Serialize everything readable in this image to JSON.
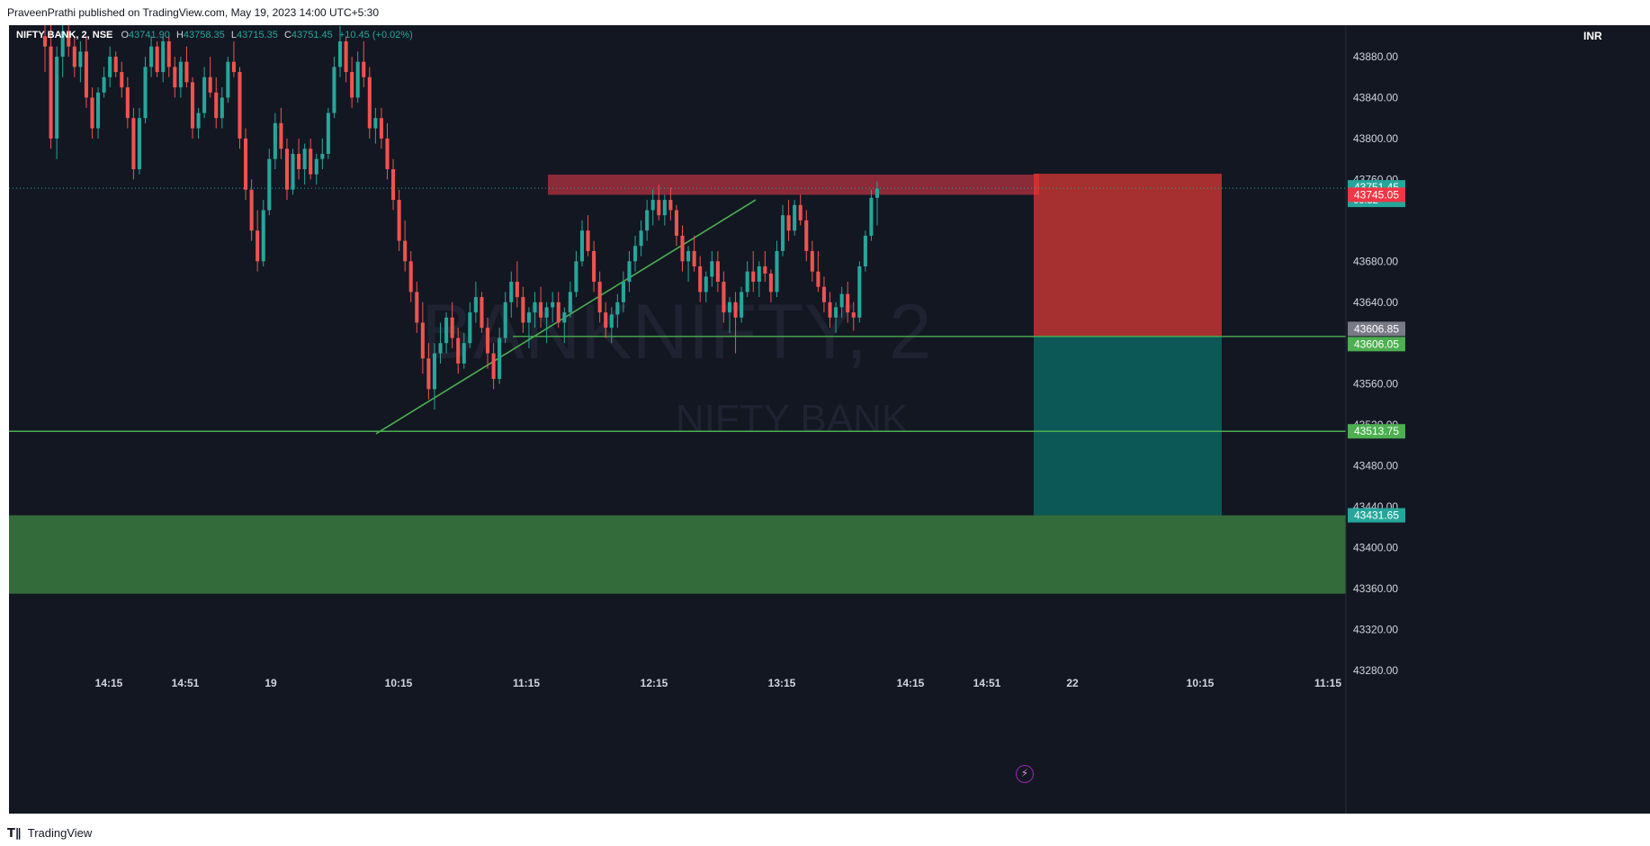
{
  "header": {
    "published_text": "PraveenPrathi published on TradingView.com, May 19, 2023 14:00 UTC+5:30"
  },
  "footer": {
    "brand": "TradingView"
  },
  "legend": {
    "symbol": "NIFTY BANK, 2, NSE",
    "open_label": "O",
    "open": "43741.90",
    "high_label": "H",
    "high": "43758.35",
    "low_label": "L",
    "low": "43715.35",
    "close_label": "C",
    "close": "43751.45",
    "change": "+10.45 (+0.02%)"
  },
  "currency": "INR",
  "watermark": {
    "symbol": "BANKNIFTY, 2",
    "name": "NIFTY BANK"
  },
  "icons": {
    "flash": "lightning-icon",
    "logo": "tradingview-logo-icon"
  },
  "colors": {
    "background": "#131722",
    "up": "#26a69a",
    "down": "#ef5350",
    "resistance_zone": "#8b2a38",
    "stop_zone": "#a5302f",
    "target_zone": "#0c5856",
    "demand_zone": "#336b3b",
    "trendline": "#4caf50"
  },
  "chart_data": {
    "type": "candlestick",
    "title": "",
    "ylim": [
      43280,
      43900
    ],
    "yticks": [
      43880,
      43840,
      43800,
      43760,
      43720,
      43680,
      43640,
      43600,
      43560,
      43520,
      43480,
      43440,
      43400,
      43360,
      43320,
      43280
    ],
    "ytick_labels": [
      "43880.00",
      "43840.00",
      "43800.00",
      "43760.00",
      "",
      "43680.00",
      "43640.00",
      "",
      "43560.00",
      "43520.00",
      "43480.00",
      "43440.00",
      "43400.00",
      "43360.00",
      "43320.00",
      "43280.00"
    ],
    "xtick_labels": [
      "14:15",
      "14:51",
      "19",
      "10:15",
      "11:15",
      "12:15",
      "13:15",
      "14:15",
      "14:51",
      "22",
      "10:15",
      "11:15"
    ],
    "price_labels": [
      {
        "value": 43751.45,
        "text": "43751.45",
        "sub": "00:32",
        "color": "#26a69a"
      },
      {
        "value": 43745.05,
        "text": "43745.05",
        "color": "#f23645"
      },
      {
        "value": 43606.85,
        "text": "43606.85",
        "color": "#787b86"
      },
      {
        "value": 43606.05,
        "text": "43606.05",
        "color": "#4caf50"
      },
      {
        "value": 43513.75,
        "text": "43513.75",
        "color": "#4caf50"
      },
      {
        "value": 43431.65,
        "text": "43431.65",
        "color": "#26a69a"
      }
    ],
    "zones": [
      {
        "name": "resistance",
        "from": 43745,
        "to": 43770
      },
      {
        "name": "short-stop",
        "from": 43606,
        "to": 43770
      },
      {
        "name": "short-target",
        "from": 43431.65,
        "to": 43606
      },
      {
        "name": "demand",
        "from": 43355,
        "to": 43431.65
      }
    ],
    "horizontal_lines": [
      43606.5,
      43513.75
    ],
    "trendline": {
      "from": 43514,
      "to": 43740
    },
    "candles": [
      [
        43900,
        43935,
        43865,
        43890
      ],
      [
        43890,
        43920,
        43790,
        43800
      ],
      [
        43800,
        43890,
        43780,
        43880
      ],
      [
        43880,
        43920,
        43860,
        43905
      ],
      [
        43905,
        43930,
        43880,
        43890
      ],
      [
        43890,
        43900,
        43860,
        43870
      ],
      [
        43870,
        43895,
        43855,
        43885
      ],
      [
        43885,
        43900,
        43830,
        43840
      ],
      [
        43840,
        43850,
        43800,
        43810
      ],
      [
        43810,
        43850,
        43800,
        43845
      ],
      [
        43845,
        43870,
        43840,
        43860
      ],
      [
        43860,
        43890,
        43850,
        43880
      ],
      [
        43880,
        43885,
        43860,
        43865
      ],
      [
        43865,
        43875,
        43840,
        43850
      ],
      [
        43850,
        43860,
        43810,
        43820
      ],
      [
        43820,
        43830,
        43760,
        43770
      ],
      [
        43770,
        43830,
        43765,
        43820
      ],
      [
        43820,
        43880,
        43815,
        43870
      ],
      [
        43870,
        43900,
        43860,
        43890
      ],
      [
        43890,
        43895,
        43860,
        43865
      ],
      [
        43865,
        43900,
        43855,
        43895
      ],
      [
        43895,
        43900,
        43860,
        43870
      ],
      [
        43870,
        43880,
        43840,
        43850
      ],
      [
        43850,
        43880,
        43840,
        43875
      ],
      [
        43875,
        43890,
        43850,
        43855
      ],
      [
        43855,
        43860,
        43800,
        43810
      ],
      [
        43810,
        43830,
        43800,
        43825
      ],
      [
        43825,
        43870,
        43820,
        43860
      ],
      [
        43860,
        43880,
        43840,
        43845
      ],
      [
        43845,
        43860,
        43810,
        43820
      ],
      [
        43820,
        43850,
        43810,
        43840
      ],
      [
        43840,
        43880,
        43835,
        43875
      ],
      [
        43875,
        43895,
        43860,
        43865
      ],
      [
        43865,
        43870,
        43790,
        43800
      ],
      [
        43800,
        43810,
        43740,
        43750
      ],
      [
        43750,
        43760,
        43700,
        43710
      ],
      [
        43710,
        43730,
        43670,
        43680
      ],
      [
        43680,
        43740,
        43675,
        43730
      ],
      [
        43730,
        43790,
        43725,
        43780
      ],
      [
        43780,
        43825,
        43770,
        43815
      ],
      [
        43815,
        43830,
        43780,
        43790
      ],
      [
        43790,
        43800,
        43740,
        43750
      ],
      [
        43750,
        43790,
        43745,
        43785
      ],
      [
        43785,
        43800,
        43760,
        43770
      ],
      [
        43770,
        43795,
        43755,
        43790
      ],
      [
        43790,
        43800,
        43760,
        43765
      ],
      [
        43765,
        43785,
        43755,
        43780
      ],
      [
        43780,
        43800,
        43770,
        43785
      ],
      [
        43785,
        43830,
        43780,
        43825
      ],
      [
        43825,
        43880,
        43820,
        43870
      ],
      [
        43870,
        43910,
        43860,
        43895
      ],
      [
        43895,
        43900,
        43855,
        43865
      ],
      [
        43865,
        43880,
        43830,
        43840
      ],
      [
        43840,
        43885,
        43835,
        43875
      ],
      [
        43875,
        43895,
        43850,
        43860
      ],
      [
        43860,
        43870,
        43800,
        43810
      ],
      [
        43810,
        43830,
        43795,
        43820
      ],
      [
        43820,
        43830,
        43790,
        43800
      ],
      [
        43800,
        43815,
        43760,
        43770
      ],
      [
        43770,
        43780,
        43730,
        43740
      ],
      [
        43740,
        43750,
        43690,
        43700
      ],
      [
        43700,
        43720,
        43670,
        43680
      ],
      [
        43680,
        43690,
        43640,
        43650
      ],
      [
        43650,
        43660,
        43610,
        43620
      ],
      [
        43620,
        43640,
        43570,
        43585
      ],
      [
        43585,
        43600,
        43545,
        43555
      ],
      [
        43555,
        43600,
        43535,
        43590
      ],
      [
        43590,
        43620,
        43580,
        43600
      ],
      [
        43600,
        43630,
        43590,
        43625
      ],
      [
        43625,
        43640,
        43595,
        43605
      ],
      [
        43605,
        43615,
        43570,
        43580
      ],
      [
        43580,
        43610,
        43575,
        43600
      ],
      [
        43600,
        43640,
        43595,
        43630
      ],
      [
        43630,
        43660,
        43620,
        43645
      ],
      [
        43645,
        43650,
        43610,
        43615
      ],
      [
        43615,
        43625,
        43575,
        43590
      ],
      [
        43590,
        43600,
        43555,
        43565
      ],
      [
        43565,
        43615,
        43560,
        43605
      ],
      [
        43605,
        43650,
        43600,
        43640
      ],
      [
        43640,
        43670,
        43625,
        43660
      ],
      [
        43660,
        43680,
        43635,
        43645
      ],
      [
        43645,
        43655,
        43610,
        43620
      ],
      [
        43620,
        43635,
        43595,
        43630
      ],
      [
        43630,
        43650,
        43615,
        43640
      ],
      [
        43640,
        43655,
        43615,
        43625
      ],
      [
        43625,
        43640,
        43600,
        43635
      ],
      [
        43635,
        43650,
        43620,
        43640
      ],
      [
        43640,
        43650,
        43615,
        43620
      ],
      [
        43620,
        43635,
        43600,
        43630
      ],
      [
        43630,
        43660,
        43625,
        43650
      ],
      [
        43650,
        43690,
        43645,
        43680
      ],
      [
        43680,
        43720,
        43675,
        43710
      ],
      [
        43710,
        43725,
        43685,
        43690
      ],
      [
        43690,
        43700,
        43650,
        43660
      ],
      [
        43660,
        43670,
        43620,
        43630
      ],
      [
        43630,
        43640,
        43605,
        43615
      ],
      [
        43615,
        43635,
        43600,
        43628
      ],
      [
        43628,
        43648,
        43615,
        43640
      ],
      [
        43640,
        43670,
        43630,
        43660
      ],
      [
        43660,
        43690,
        43650,
        43680
      ],
      [
        43680,
        43705,
        43670,
        43695
      ],
      [
        43695,
        43720,
        43685,
        43710
      ],
      [
        43710,
        43740,
        43700,
        43730
      ],
      [
        43730,
        43750,
        43715,
        43740
      ],
      [
        43740,
        43755,
        43720,
        43725
      ],
      [
        43725,
        43745,
        43715,
        43740
      ],
      [
        43740,
        43752,
        43720,
        43730
      ],
      [
        43730,
        43735,
        43695,
        43705
      ],
      [
        43705,
        43715,
        43670,
        43680
      ],
      [
        43680,
        43695,
        43660,
        43690
      ],
      [
        43690,
        43705,
        43670,
        43675
      ],
      [
        43675,
        43685,
        43640,
        43650
      ],
      [
        43650,
        43670,
        43640,
        43665
      ],
      [
        43665,
        43690,
        43655,
        43680
      ],
      [
        43680,
        43690,
        43650,
        43660
      ],
      [
        43660,
        43670,
        43620,
        43630
      ],
      [
        43630,
        43645,
        43610,
        43640
      ],
      [
        43640,
        43650,
        43590,
        43625
      ],
      [
        43625,
        43655,
        43620,
        43650
      ],
      [
        43650,
        43680,
        43645,
        43670
      ],
      [
        43670,
        43690,
        43650,
        43660
      ],
      [
        43660,
        43680,
        43645,
        43675
      ],
      [
        43675,
        43690,
        43660,
        43668
      ],
      [
        43668,
        43672,
        43640,
        43650
      ],
      [
        43650,
        43700,
        43645,
        43690
      ],
      [
        43690,
        43735,
        43685,
        43725
      ],
      [
        43725,
        43740,
        43700,
        43710
      ],
      [
        43710,
        43740,
        43705,
        43735
      ],
      [
        43735,
        43745,
        43715,
        43720
      ],
      [
        43720,
        43730,
        43680,
        43690
      ],
      [
        43690,
        43700,
        43660,
        43670
      ],
      [
        43670,
        43690,
        43650,
        43655
      ],
      [
        43655,
        43665,
        43630,
        43640
      ],
      [
        43640,
        43650,
        43615,
        43625
      ],
      [
        43625,
        43640,
        43610,
        43635
      ],
      [
        43635,
        43655,
        43625,
        43648
      ],
      [
        43648,
        43660,
        43620,
        43630
      ],
      [
        43630,
        43640,
        43612,
        43625
      ],
      [
        43625,
        43680,
        43620,
        43675
      ],
      [
        43675,
        43710,
        43670,
        43705
      ],
      [
        43705,
        43750,
        43700,
        43742
      ],
      [
        43742,
        43758,
        43715,
        43751
      ]
    ]
  }
}
